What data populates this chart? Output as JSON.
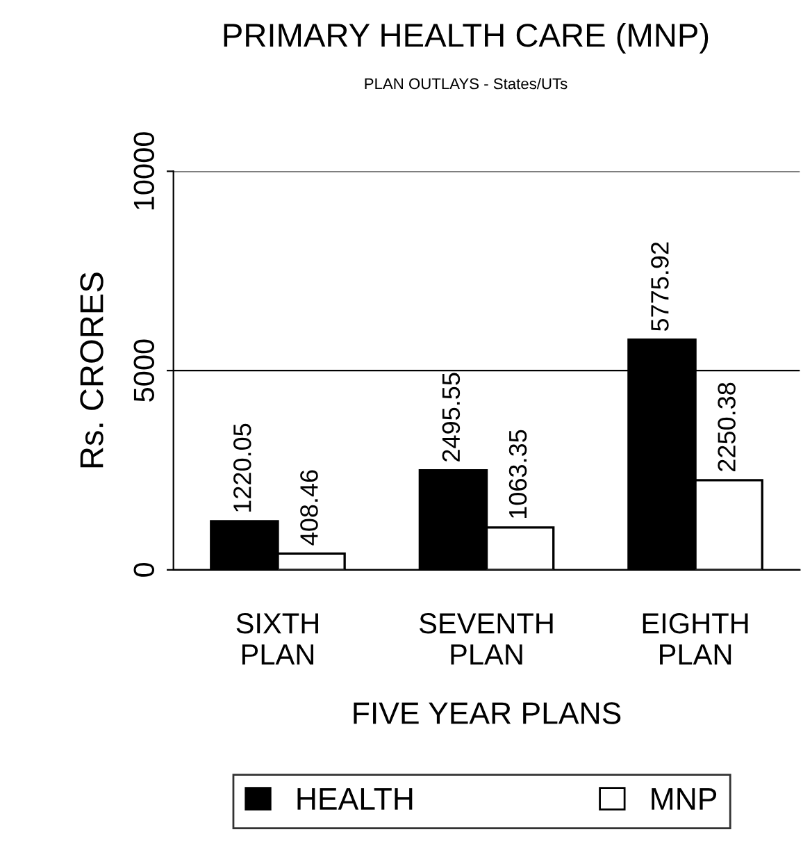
{
  "chart_data": {
    "type": "bar",
    "title": "PRIMARY HEALTH CARE (MNP)",
    "subtitle": "PLAN OUTLAYS - States/UTs",
    "xlabel": "FIVE YEAR PLANS",
    "ylabel": "Rs. CRORES",
    "categories": [
      "SIXTH\nPLAN",
      "SEVENTH\nPLAN",
      "EIGHTH\nPLAN"
    ],
    "series": [
      {
        "name": "HEALTH",
        "color": "#000000",
        "values": [
          1220.05,
          2495.55,
          5775.92
        ]
      },
      {
        "name": "MNP",
        "color": "#ffffff",
        "values": [
          408.46,
          1063.35,
          2250.38
        ]
      }
    ],
    "ylim": [
      0,
      10000
    ],
    "yticks": [
      0,
      5000,
      10000
    ],
    "grid": "y",
    "legend": "bottom",
    "data_labels": true
  }
}
